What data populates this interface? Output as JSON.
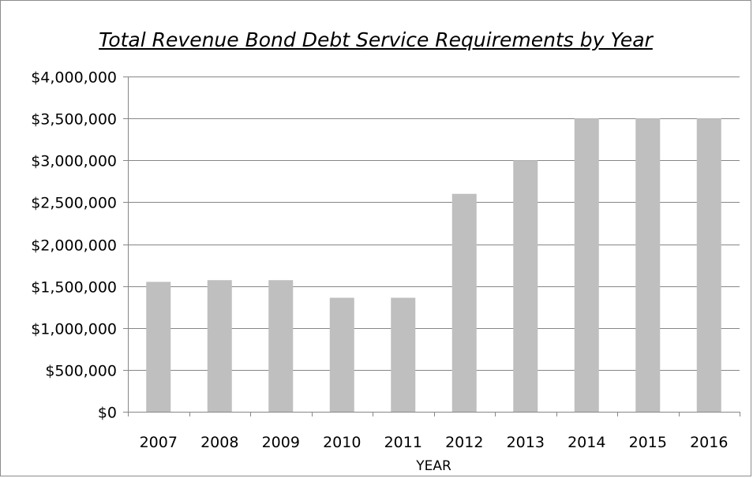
{
  "chart_data": {
    "type": "bar",
    "title": "Total Revenue Bond Debt Service Requirements by Year",
    "xlabel": "YEAR",
    "ylabel": "",
    "categories": [
      "2007",
      "2008",
      "2009",
      "2010",
      "2011",
      "2012",
      "2013",
      "2014",
      "2015",
      "2016"
    ],
    "values": [
      1550000,
      1570000,
      1570000,
      1360000,
      1360000,
      2600000,
      3000000,
      3500000,
      3500000,
      3500000
    ],
    "ylim": [
      0,
      4000000
    ],
    "y_ticks": [
      0,
      500000,
      1000000,
      1500000,
      2000000,
      2500000,
      3000000,
      3500000,
      4000000
    ],
    "y_tick_labels": [
      "$0",
      "$500,000",
      "$1,000,000",
      "$1,500,000",
      "$2,000,000",
      "$2,500,000",
      "$3,000,000",
      "$3,500,000",
      "$4,000,000"
    ],
    "grid": "horizontal",
    "legend": "none",
    "colors": {
      "bar": "#bfbfbf",
      "grid": "#868686",
      "axis": "#868686"
    }
  }
}
